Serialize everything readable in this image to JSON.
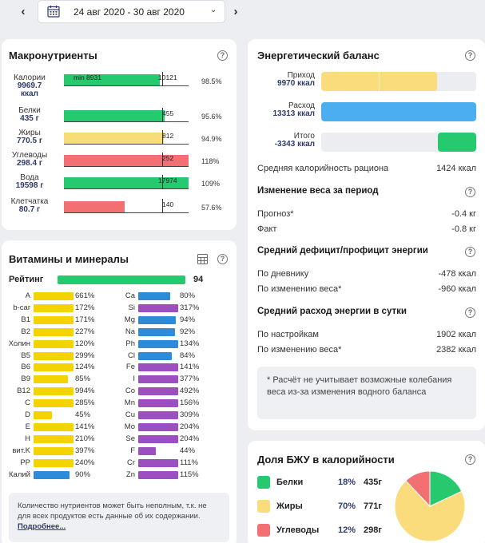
{
  "header": {
    "date_range": "24 авг 2020 - 30 авг 2020",
    "prev_icon": "chevron-left-icon",
    "next_icon": "chevron-right-icon",
    "dropdown_icon": "chevron-down-icon",
    "calendar_icon": "calendar-icon"
  },
  "macros": {
    "title": "Макронутриенты",
    "help_glyph": "?",
    "min_label": "min 8931",
    "rows": [
      {
        "name": "Калории",
        "amount": "9969.7",
        "unit": "ккал",
        "target": "10121",
        "pct": "98.5%",
        "fill": 0.77,
        "color": "#27c96e"
      },
      {
        "name": "Белки",
        "amount": "435 г",
        "target": "455",
        "pct": "95.6%",
        "fill": 0.81,
        "color": "#27c96e"
      },
      {
        "name": "Жиры",
        "amount": "770.5 г",
        "target": "812",
        "pct": "94.9%",
        "fill": 0.8,
        "color": "#f8dc78"
      },
      {
        "name": "Углеводы",
        "amount": "298.4 г",
        "target": "252",
        "pct": "118%",
        "fill": 1.0,
        "color": "#f26f73"
      },
      {
        "name": "Вода",
        "amount": "19598 г",
        "target": "17974",
        "pct": "109%",
        "fill": 1.0,
        "color": "#27c96e"
      },
      {
        "name": "Клетчатка",
        "amount": "80.7 г",
        "target": "140",
        "pct": "57.6%",
        "fill": 0.49,
        "color": "#f26f73"
      }
    ]
  },
  "energy": {
    "title": "Энергетический баланс",
    "income_label": "Приход",
    "income_value": "9970 ккал",
    "expense_label": "Расход",
    "expense_value": "13313 ккал",
    "total_label": "Итого",
    "total_value": "-3343 ккал",
    "avg_label": "Средняя калорийность рациона",
    "avg_value": "1424 ккал",
    "weight_title": "Изменение веса за период",
    "forecast_label": "Прогноз*",
    "forecast_value": "-0.4 кг",
    "fact_label": "Факт",
    "fact_value": "-0.8 кг",
    "deficit_title": "Средний дефицит/профицит энергии",
    "by_diary_label": "По дневнику",
    "by_diary_value": "-478 ккал",
    "by_weight_label": "По изменению веса*",
    "by_weight_value": "-960 ккал",
    "daily_title": "Средний расход энергии в сутки",
    "by_settings_label": "По настройкам",
    "by_settings_value": "1902 ккал",
    "by_weight2_label": "По изменению веса*",
    "by_weight2_value": "2382 ккал",
    "note": "* Расчёт не учитывает возможные колебания веса из-за изменения водного баланса"
  },
  "vitamins": {
    "title": "Витамины и минералы",
    "table_icon": "table-icon",
    "rating_label": "Рейтинг",
    "rating_value": "94",
    "left": [
      {
        "name": "A",
        "pct": "661%",
        "color": "#f3d400",
        "w": 50
      },
      {
        "name": "b-car",
        "pct": "172%",
        "color": "#f3d400",
        "w": 50
      },
      {
        "name": "B1",
        "pct": "171%",
        "color": "#f3d400",
        "w": 50
      },
      {
        "name": "B2",
        "pct": "227%",
        "color": "#f3d400",
        "w": 50
      },
      {
        "name": "Холин",
        "pct": "120%",
        "color": "#f3d400",
        "w": 50
      },
      {
        "name": "B5",
        "pct": "299%",
        "color": "#f3d400",
        "w": 50
      },
      {
        "name": "B6",
        "pct": "124%",
        "color": "#f3d400",
        "w": 50
      },
      {
        "name": "B9",
        "pct": "85%",
        "color": "#f3d400",
        "w": 43
      },
      {
        "name": "B12",
        "pct": "994%",
        "color": "#f3d400",
        "w": 50
      },
      {
        "name": "C",
        "pct": "285%",
        "color": "#f3d400",
        "w": 50
      },
      {
        "name": "D",
        "pct": "45%",
        "color": "#f3d400",
        "w": 23
      },
      {
        "name": "E",
        "pct": "141%",
        "color": "#f3d400",
        "w": 50
      },
      {
        "name": "H",
        "pct": "210%",
        "color": "#f3d400",
        "w": 50
      },
      {
        "name": "вит.K",
        "pct": "397%",
        "color": "#f3d400",
        "w": 50
      },
      {
        "name": "PP",
        "pct": "240%",
        "color": "#f3d400",
        "w": 50
      },
      {
        "name": "Калий",
        "pct": "90%",
        "color": "#2e8bd8",
        "w": 45
      }
    ],
    "right": [
      {
        "name": "Ca",
        "pct": "80%",
        "color": "#2e8bd8",
        "w": 40
      },
      {
        "name": "Si",
        "pct": "317%",
        "color": "#9b4fc0",
        "w": 50
      },
      {
        "name": "Mg",
        "pct": "94%",
        "color": "#2e8bd8",
        "w": 47
      },
      {
        "name": "Na",
        "pct": "92%",
        "color": "#2e8bd8",
        "w": 46
      },
      {
        "name": "Ph",
        "pct": "134%",
        "color": "#2e8bd8",
        "w": 50
      },
      {
        "name": "Cl",
        "pct": "84%",
        "color": "#2e8bd8",
        "w": 42
      },
      {
        "name": "Fe",
        "pct": "141%",
        "color": "#9b4fc0",
        "w": 50
      },
      {
        "name": "I",
        "pct": "377%",
        "color": "#9b4fc0",
        "w": 50
      },
      {
        "name": "Co",
        "pct": "492%",
        "color": "#9b4fc0",
        "w": 50
      },
      {
        "name": "Mn",
        "pct": "156%",
        "color": "#9b4fc0",
        "w": 50
      },
      {
        "name": "Cu",
        "pct": "309%",
        "color": "#9b4fc0",
        "w": 50
      },
      {
        "name": "Mo",
        "pct": "204%",
        "color": "#9b4fc0",
        "w": 50
      },
      {
        "name": "Se",
        "pct": "204%",
        "color": "#9b4fc0",
        "w": 50
      },
      {
        "name": "F",
        "pct": "44%",
        "color": "#9b4fc0",
        "w": 22
      },
      {
        "name": "Cr",
        "pct": "111%",
        "color": "#9b4fc0",
        "w": 50
      },
      {
        "name": "Zn",
        "pct": "115%",
        "color": "#9b4fc0",
        "w": 50
      }
    ],
    "note_text": "Количество нутриентов может быть неполным, т.к. не для всех продуктов есть данные об их содержании.",
    "note_link": "Подробнее..."
  },
  "bju": {
    "title": "Доля БЖУ в калорийности",
    "rows": [
      {
        "name": "Белки",
        "pct": "18%",
        "grams": "435г",
        "color": "#27c96e"
      },
      {
        "name": "Жиры",
        "pct": "70%",
        "grams": "771г",
        "color": "#fbdc7d"
      },
      {
        "name": "Углеводы",
        "pct": "12%",
        "grams": "298г",
        "color": "#f26f73"
      }
    ]
  },
  "chart_data": {
    "type": "pie",
    "title": "Доля БЖУ в калорийности",
    "categories": [
      "Белки",
      "Жиры",
      "Углеводы"
    ],
    "values": [
      18,
      70,
      12
    ],
    "colors": [
      "#27c96e",
      "#fbdc7d",
      "#f26f73"
    ]
  }
}
